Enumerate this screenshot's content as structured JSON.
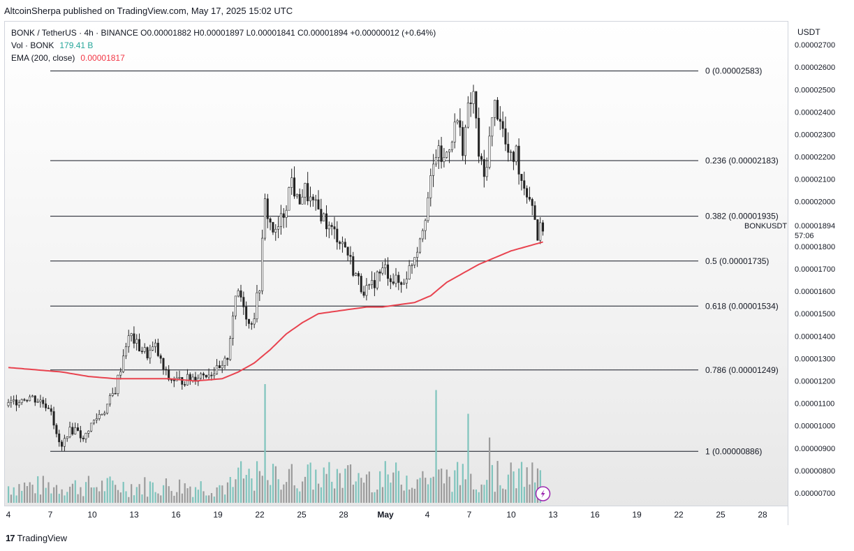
{
  "header": {
    "published_line": "AltcoinSherpa published on TradingView.com, May 17, 2025 15:02 UTC"
  },
  "legend": {
    "line1": "BONK / TetherUS · 4h · BINANCE  O0.00001882  H0.00001897  L0.00001841  C0.00001894  +0.00000012 (+0.64%)",
    "vol_label": "Vol · BONK",
    "vol_value": "179.41 B",
    "ema_label": "EMA (200, close)",
    "ema_value": "0.00001817"
  },
  "price_axis": {
    "unit": "USDT",
    "ticks": [
      "0.00002700",
      "0.00002600",
      "0.00002500",
      "0.00002400",
      "0.00002300",
      "0.00002200",
      "0.00002100",
      "0.00002000",
      "0.00001800",
      "0.00001700",
      "0.00001600",
      "0.00001500",
      "0.00001400",
      "0.00001300",
      "0.00001200",
      "0.00001100",
      "0.00001000",
      "0.00000900",
      "0.00000800",
      "0.00000700"
    ],
    "last_price": "0.00001894",
    "countdown": "57:06",
    "symbol_tag": "BONKUSDT"
  },
  "time_axis": {
    "ticks": [
      "4",
      "7",
      "10",
      "13",
      "16",
      "19",
      "22",
      "25",
      "28",
      "May",
      "4",
      "7",
      "10",
      "13",
      "16",
      "19",
      "22",
      "25",
      "28"
    ]
  },
  "colors": {
    "up": "#222222",
    "down": "#222222",
    "ema": "#e8434f",
    "fib_line": "#131722",
    "vol_up": "#7fc4bd",
    "vol_down": "#9b9b9b",
    "lightning": "#9c27b0"
  },
  "icons": [
    "lightning-icon",
    "tradingview-logo"
  ],
  "footer": {
    "brand": "TradingView",
    "logo_text": "17"
  },
  "chart_data": {
    "type": "candlestick",
    "symbol": "BONKUSDT",
    "interval": "4h",
    "y_range": [
      6.5e-06,
      2.8e-05
    ],
    "last_price": 1.894e-05,
    "fib_levels": [
      {
        "level": "0",
        "price": 2.583e-05,
        "label": "0 (0.00002583)"
      },
      {
        "level": "0.236",
        "price": 2.183e-05,
        "label": "0.236 (0.00002183)"
      },
      {
        "level": "0.382",
        "price": 1.935e-05,
        "label": "0.382 (0.00001935)"
      },
      {
        "level": "0.5",
        "price": 1.735e-05,
        "label": "0.5 (0.00001735)"
      },
      {
        "level": "0.618",
        "price": 1.534e-05,
        "label": "0.618 (0.00001534)"
      },
      {
        "level": "0.786",
        "price": 1.249e-05,
        "label": "0.786 (0.00001249)"
      },
      {
        "level": "1",
        "price": 8.86e-06,
        "label": "1 (0.00000886)"
      }
    ],
    "close_path": [
      [
        0,
        1.09e-05
      ],
      [
        4,
        1.12e-05
      ],
      [
        8,
        1.13e-05
      ],
      [
        12,
        1.11e-05
      ],
      [
        16,
        1.08e-05
      ],
      [
        18,
        9.5e-06
      ],
      [
        20,
        9e-06
      ],
      [
        22,
        9.7e-06
      ],
      [
        26,
        9.9e-06
      ],
      [
        28,
        9.3e-06
      ],
      [
        30,
        9.9e-06
      ],
      [
        34,
        1.05e-05
      ],
      [
        36,
        1.07e-05
      ],
      [
        40,
        1.16e-05
      ],
      [
        42,
        1.26e-05
      ],
      [
        44,
        1.37e-05
      ],
      [
        46,
        1.4e-05
      ],
      [
        48,
        1.36e-05
      ],
      [
        52,
        1.32e-05
      ],
      [
        55,
        1.35e-05
      ],
      [
        58,
        1.25e-05
      ],
      [
        60,
        1.21e-05
      ],
      [
        64,
        1.2e-05
      ],
      [
        68,
        1.21e-05
      ],
      [
        72,
        1.23e-05
      ],
      [
        76,
        1.24e-05
      ],
      [
        80,
        1.25e-05
      ],
      [
        82,
        1.31e-05
      ],
      [
        84,
        1.5e-05
      ],
      [
        86,
        1.6e-05
      ],
      [
        88,
        1.55e-05
      ],
      [
        90,
        1.45e-05
      ],
      [
        92,
        1.5e-05
      ],
      [
        94,
        1.63e-05
      ],
      [
        96,
        1.99e-05
      ],
      [
        98,
        1.9e-05
      ],
      [
        100,
        1.85e-05
      ],
      [
        103,
        1.95e-05
      ],
      [
        106,
        2.1e-05
      ],
      [
        108,
        2e-05
      ],
      [
        111,
        2.05e-05
      ],
      [
        114,
        1.98e-05
      ],
      [
        117,
        1.95e-05
      ],
      [
        120,
        1.88e-05
      ],
      [
        123,
        1.85e-05
      ],
      [
        126,
        1.8e-05
      ],
      [
        129,
        1.7e-05
      ],
      [
        132,
        1.62e-05
      ],
      [
        135,
        1.6e-05
      ],
      [
        138,
        1.67e-05
      ],
      [
        141,
        1.7e-05
      ],
      [
        144,
        1.65e-05
      ],
      [
        147,
        1.63e-05
      ],
      [
        150,
        1.7e-05
      ],
      [
        153,
        1.8e-05
      ],
      [
        156,
        1.95e-05
      ],
      [
        158,
        2.08e-05
      ],
      [
        160,
        2.22e-05
      ],
      [
        163,
        2.18e-05
      ],
      [
        166,
        2.3e-05
      ],
      [
        168,
        2.36e-05
      ],
      [
        170,
        2.25e-05
      ],
      [
        172,
        2.4e-05
      ],
      [
        174,
        2.48e-05
      ],
      [
        176,
        2.21e-05
      ],
      [
        178,
        2.1e-05
      ],
      [
        180,
        2.28e-05
      ],
      [
        182,
        2.43e-05
      ],
      [
        184,
        2.38e-05
      ],
      [
        186,
        2.25e-05
      ],
      [
        188,
        2.18e-05
      ],
      [
        190,
        2.22e-05
      ],
      [
        192,
        2.1e-05
      ],
      [
        194,
        2.05e-05
      ],
      [
        196,
        2e-05
      ],
      [
        198,
        1.85e-05
      ],
      [
        200,
        1.89e-05
      ]
    ],
    "ema_path": [
      [
        0,
        1.26e-05
      ],
      [
        10,
        1.25e-05
      ],
      [
        20,
        1.24e-05
      ],
      [
        30,
        1.22e-05
      ],
      [
        40,
        1.21e-05
      ],
      [
        50,
        1.21e-05
      ],
      [
        60,
        1.21e-05
      ],
      [
        70,
        1.2e-05
      ],
      [
        80,
        1.21e-05
      ],
      [
        86,
        1.24e-05
      ],
      [
        92,
        1.28e-05
      ],
      [
        98,
        1.34e-05
      ],
      [
        104,
        1.41e-05
      ],
      [
        110,
        1.46e-05
      ],
      [
        116,
        1.5e-05
      ],
      [
        122,
        1.51e-05
      ],
      [
        128,
        1.52e-05
      ],
      [
        134,
        1.53e-05
      ],
      [
        140,
        1.53e-05
      ],
      [
        146,
        1.54e-05
      ],
      [
        152,
        1.55e-05
      ],
      [
        158,
        1.58e-05
      ],
      [
        164,
        1.64e-05
      ],
      [
        170,
        1.68e-05
      ],
      [
        176,
        1.72e-05
      ],
      [
        182,
        1.75e-05
      ],
      [
        188,
        1.78e-05
      ],
      [
        194,
        1.8e-05
      ],
      [
        200,
        1.82e-05
      ]
    ],
    "volume_spikes": [
      {
        "bar": 96,
        "value": 1.0
      },
      {
        "bar": 160,
        "value": 0.95
      },
      {
        "bar": 172,
        "value": 0.75
      },
      {
        "bar": 180,
        "value": 0.55
      }
    ]
  }
}
